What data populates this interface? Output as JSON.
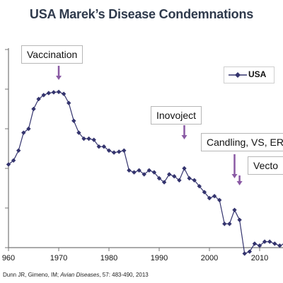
{
  "title": "USA Marek’s Disease Condemnations",
  "source": "Dunn JR, Gimeno, IM; Avian Diseases, 57: 483-490, 2013",
  "source_parts": {
    "authors": "Dunn JR, Gimeno, IM; ",
    "journal": "Avian Diseases",
    "rest": ", 57: 483-490, 2013"
  },
  "colors": {
    "series": "#34346e",
    "annotation_arrow": "#8a5aa4",
    "axis": "#777777"
  },
  "annotations": [
    {
      "label": "Vaccination",
      "year": 1970
    },
    {
      "label": "Inovoject",
      "year": 1995
    },
    {
      "label": "Candling, VS, ER",
      "year": 2005
    },
    {
      "label": "Vecto",
      "year": 2006
    }
  ],
  "chart_data": {
    "type": "line",
    "title": "USA Marek’s Disease Condemnations",
    "xlabel": "",
    "ylabel": "",
    "xlim": [
      1960,
      2015
    ],
    "ylim": [
      0,
      5
    ],
    "x_ticks": [
      "960",
      "1970",
      "1980",
      "1990",
      "2000",
      "2010"
    ],
    "grid": false,
    "legend": {
      "position": "top-right",
      "entries": [
        "USA"
      ]
    },
    "series": [
      {
        "name": "USA",
        "x": [
          1960,
          1961,
          1962,
          1963,
          1964,
          1965,
          1966,
          1967,
          1968,
          1969,
          1970,
          1971,
          1972,
          1973,
          1974,
          1975,
          1976,
          1977,
          1978,
          1979,
          1980,
          1981,
          1982,
          1983,
          1984,
          1985,
          1986,
          1987,
          1988,
          1989,
          1990,
          1991,
          1992,
          1993,
          1994,
          1995,
          1996,
          1997,
          1998,
          1999,
          2000,
          2001,
          2002,
          2003,
          2004,
          2005,
          2006,
          2007,
          2008,
          2009,
          2010,
          2011,
          2012,
          2013,
          2014,
          2015
        ],
        "values": [
          2.1,
          2.2,
          2.45,
          2.9,
          3.0,
          3.5,
          3.75,
          3.85,
          3.9,
          3.92,
          3.93,
          3.88,
          3.65,
          3.2,
          2.9,
          2.75,
          2.75,
          2.72,
          2.55,
          2.55,
          2.45,
          2.4,
          2.42,
          2.45,
          1.95,
          1.9,
          1.95,
          1.85,
          1.95,
          1.9,
          1.75,
          1.65,
          1.85,
          1.8,
          1.7,
          2.0,
          1.75,
          1.7,
          1.55,
          1.4,
          1.25,
          1.3,
          1.2,
          0.6,
          0.6,
          0.95,
          0.7,
          -0.15,
          -0.1,
          0.1,
          0.05,
          0.15,
          0.15,
          0.1,
          0.05,
          0.1
        ]
      }
    ]
  }
}
